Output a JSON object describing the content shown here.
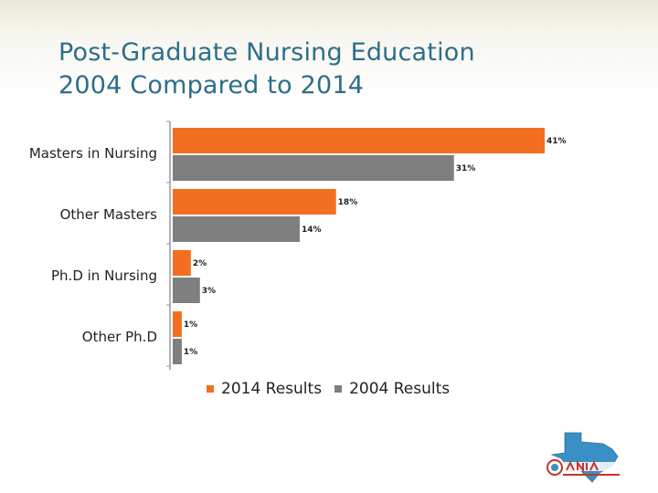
{
  "title": {
    "line1": "Post-Graduate Nursing Education",
    "line2": "2004 Compared to 2014"
  },
  "colors": {
    "series_2014": "#f26f21",
    "series_2004": "#7f7f7f",
    "title": "#2c6e8a"
  },
  "chart_data": {
    "type": "bar",
    "orientation": "horizontal",
    "categories": [
      "Masters in Nursing",
      "Other Masters",
      "Ph.D in Nursing",
      "Other Ph.D"
    ],
    "series": [
      {
        "name": "2014 Results",
        "values": [
          41,
          18,
          2,
          1
        ],
        "labels": [
          "41%",
          "18%",
          "2%",
          "1%"
        ],
        "color": "#f26f21"
      },
      {
        "name": "2004 Results",
        "values": [
          31,
          14,
          3,
          1
        ],
        "labels": [
          "31%",
          "14%",
          "3%",
          "1%"
        ],
        "color": "#7f7f7f"
      }
    ],
    "xlim": [
      0,
      41
    ],
    "grid": false,
    "legend_position": "bottom",
    "title": "Post-Graduate Nursing Education 2004 Compared to 2014"
  },
  "logo": {
    "icon": "texas-nursing-logo-icon"
  }
}
